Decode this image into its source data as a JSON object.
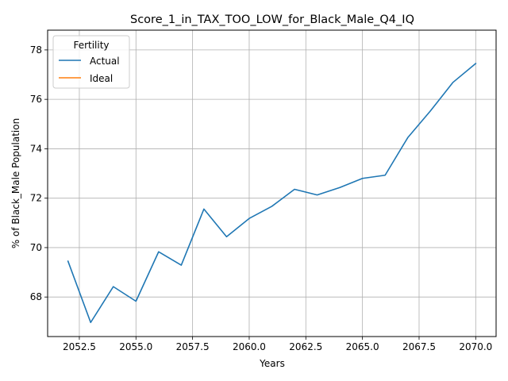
{
  "chart_data": {
    "type": "line",
    "title": "Score_1_in_TAX_TOO_LOW_for_Black_Male_Q4_IQ",
    "xlabel": "Years",
    "ylabel": "% of Black_Male Population",
    "xlim": [
      2051.1,
      2070.9
    ],
    "ylim": [
      66.4,
      78.8
    ],
    "grid": true,
    "x_ticks": [
      2052.5,
      2055.0,
      2057.5,
      2060.0,
      2062.5,
      2065.0,
      2067.5,
      2070.0
    ],
    "x_tick_labels": [
      "2052.5",
      "2055.0",
      "2057.5",
      "2060.0",
      "2062.5",
      "2065.0",
      "2067.5",
      "2070.0"
    ],
    "y_ticks": [
      68,
      70,
      72,
      74,
      76,
      78
    ],
    "y_tick_labels": [
      "68",
      "70",
      "72",
      "74",
      "76",
      "78"
    ],
    "legend": {
      "title": "Fertility",
      "placement": "top-left",
      "entries": [
        "Actual",
        "Ideal"
      ]
    },
    "series": [
      {
        "name": "Actual",
        "color": "#1f77b4",
        "x": [
          2052,
          2053,
          2054,
          2055,
          2056,
          2057,
          2058,
          2059,
          2060,
          2061,
          2062,
          2063,
          2064,
          2065,
          2066,
          2067,
          2068,
          2069,
          2070
        ],
        "y": [
          69.45,
          66.97,
          68.42,
          67.83,
          69.83,
          69.29,
          71.56,
          70.44,
          71.18,
          71.67,
          72.36,
          72.13,
          72.43,
          72.8,
          72.93,
          74.45,
          75.53,
          76.69,
          77.45
        ]
      },
      {
        "name": "Ideal",
        "color": "#ff7f0e",
        "x": [],
        "y": []
      }
    ]
  }
}
